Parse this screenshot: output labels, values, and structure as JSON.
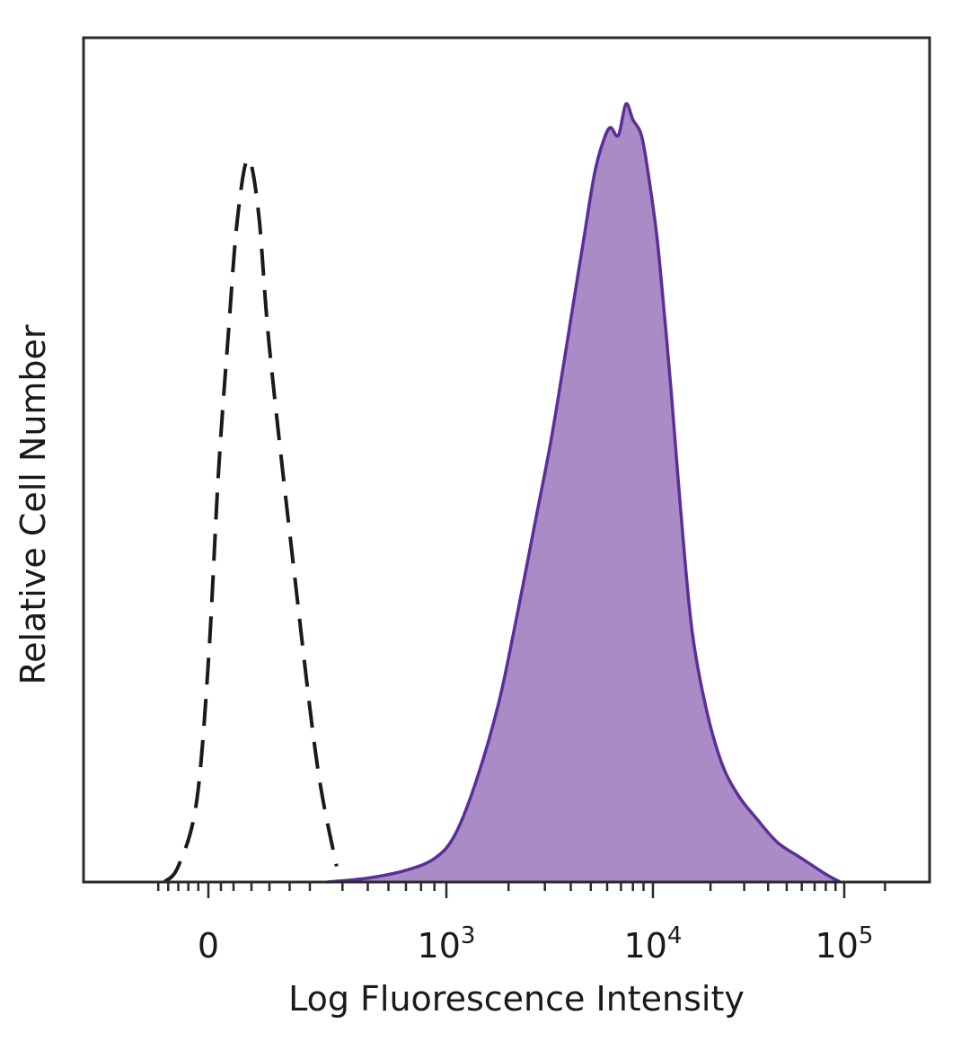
{
  "chart_data": {
    "type": "area",
    "title": "",
    "xlabel": "Log Fluorescence Intensity",
    "ylabel": "Relative Cell Number",
    "x_scale": "biexponential",
    "x_ticks": [
      {
        "value": 0,
        "base": "0",
        "exp": ""
      },
      {
        "value": 1000,
        "base": "10",
        "exp": "3"
      },
      {
        "value": 10000,
        "base": "10",
        "exp": "4"
      },
      {
        "value": 100000,
        "base": "10",
        "exp": "5"
      }
    ],
    "xlim": [
      -300,
      250000
    ],
    "ylim": [
      0,
      100
    ],
    "grid": false,
    "legend": "none",
    "series": [
      {
        "style": "dashed-outline",
        "color": "#1a1a1a",
        "x": [
          -220,
          -150,
          -60,
          0,
          40,
          80,
          110,
          140,
          170,
          200,
          260,
          320,
          380
        ],
        "y": [
          0,
          2,
          10,
          28,
          52,
          70,
          84,
          92,
          85,
          68,
          40,
          15,
          2
        ]
      },
      {
        "style": "filled",
        "color": "#5b2e9a",
        "fill": "#a98cc6",
        "x": [
          350,
          500,
          700,
          900,
          1100,
          1400,
          1800,
          2200,
          2700,
          3200,
          3700,
          4200,
          4700,
          5200,
          5700,
          6200,
          6800,
          7400,
          8000,
          8800,
          9500,
          10500,
          11500,
          12500,
          14000,
          16000,
          19000,
          23000,
          28000,
          35000,
          45000,
          60000,
          80000,
          95000
        ],
        "y": [
          0,
          0.5,
          1.5,
          3,
          6,
          13,
          23,
          34,
          46,
          56,
          66,
          75,
          83,
          90,
          94,
          96,
          95,
          99,
          97,
          95,
          90,
          82,
          72,
          62,
          47,
          32,
          22,
          15,
          11,
          8,
          5,
          3,
          1,
          0
        ]
      }
    ]
  }
}
